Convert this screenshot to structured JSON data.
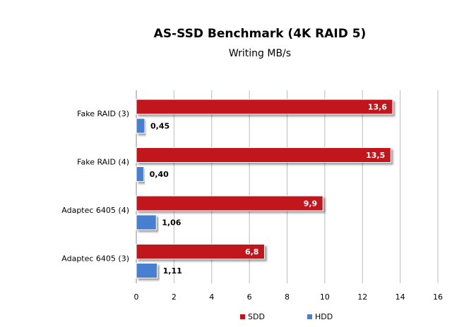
{
  "chart_data": {
    "type": "hbar",
    "title": "AS-SSD Benchmark (4K RAID 5)",
    "subtitle": "Writing MB/s",
    "categories": [
      "Fake RAID (3)",
      "Fake RAID (4)",
      "Adaptec 6405 (4)",
      "Adaptec 6405 (3)"
    ],
    "series": [
      {
        "name": "SDD",
        "color": "#c0141c",
        "values": [
          13.6,
          13.5,
          9.9,
          6.8
        ],
        "value_labels": [
          "13,6",
          "13,5",
          "9,9",
          "6,8"
        ]
      },
      {
        "name": "HDD",
        "color": "#4a7fd0",
        "values": [
          0.45,
          0.4,
          1.06,
          1.11
        ],
        "value_labels": [
          "0,45",
          "0,40",
          "1,06",
          "1,11"
        ]
      }
    ],
    "xlim": [
      0,
      16
    ],
    "xticks": [
      0,
      2,
      4,
      6,
      8,
      10,
      12,
      14,
      16
    ],
    "grid": true,
    "legend": "bottom"
  }
}
